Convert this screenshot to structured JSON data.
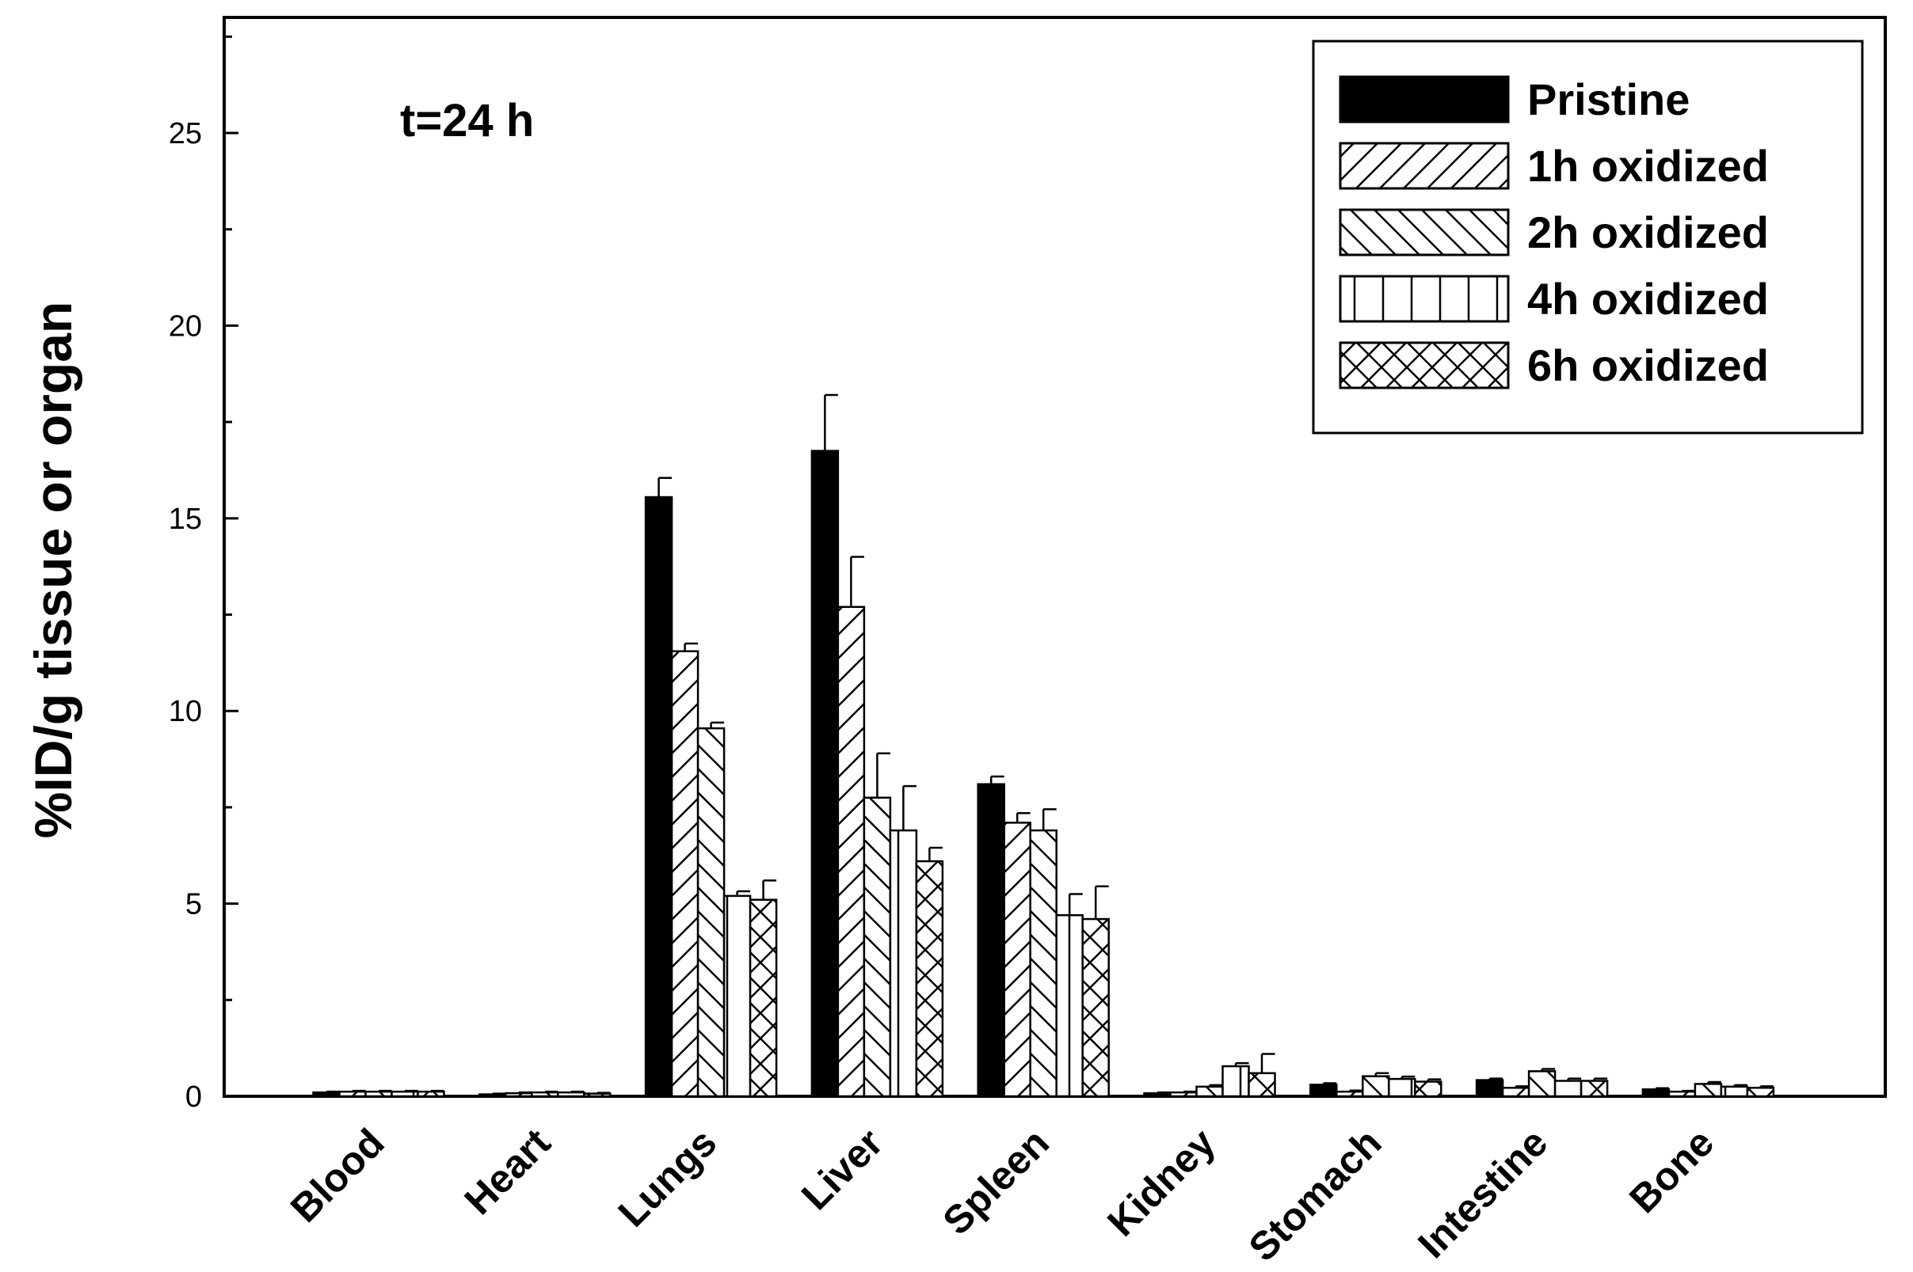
{
  "chart_data": {
    "type": "bar",
    "ylabel": "%ID/g tissue or organ",
    "xlabel": "",
    "ylim": [
      0,
      28
    ],
    "yticks": [
      0,
      5,
      10,
      15,
      20,
      25
    ],
    "annotation": "t=24 h",
    "legend_position": "top-right",
    "categories": [
      "Blood",
      "Heart",
      "Lungs",
      "Liver",
      "Spleen",
      "Kidney",
      "Stomach",
      "Intestine",
      "Bone"
    ],
    "series": [
      {
        "name": "Pristine",
        "pattern": "solid",
        "values": [
          0.1,
          0.05,
          15.55,
          16.75,
          8.1,
          0.08,
          0.3,
          0.42,
          0.18
        ],
        "errors": [
          0.02,
          0.02,
          0.5,
          1.45,
          0.2,
          0.02,
          0.04,
          0.04,
          0.03
        ]
      },
      {
        "name": "1h oxidized",
        "pattern": "diagonal-up",
        "values": [
          0.12,
          0.08,
          11.55,
          12.7,
          7.1,
          0.1,
          0.12,
          0.22,
          0.12
        ],
        "errors": [
          0.02,
          0.02,
          0.2,
          1.3,
          0.25,
          0.02,
          0.03,
          0.04,
          0.02
        ]
      },
      {
        "name": "2h oxidized",
        "pattern": "diagonal-down",
        "values": [
          0.12,
          0.1,
          9.55,
          7.75,
          6.9,
          0.25,
          0.52,
          0.65,
          0.32
        ],
        "errors": [
          0.02,
          0.02,
          0.15,
          1.15,
          0.55,
          0.04,
          0.08,
          0.06,
          0.05
        ]
      },
      {
        "name": "4h oxidized",
        "pattern": "vertical",
        "values": [
          0.12,
          0.1,
          5.2,
          6.9,
          4.7,
          0.78,
          0.45,
          0.4,
          0.25
        ],
        "errors": [
          0.02,
          0.02,
          0.12,
          1.15,
          0.55,
          0.08,
          0.06,
          0.06,
          0.04
        ]
      },
      {
        "name": "6h oxidized",
        "pattern": "cross",
        "values": [
          0.12,
          0.07,
          5.1,
          6.1,
          4.6,
          0.6,
          0.38,
          0.4,
          0.22
        ],
        "errors": [
          0.02,
          0.02,
          0.5,
          0.35,
          0.85,
          0.5,
          0.06,
          0.06,
          0.04
        ]
      }
    ]
  }
}
